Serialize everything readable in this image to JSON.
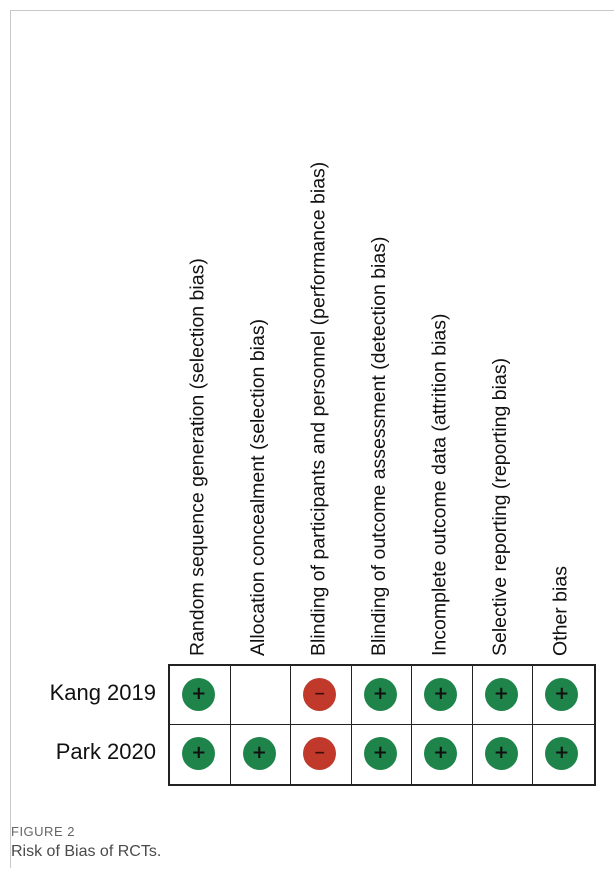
{
  "figure": {
    "label": "FIGURE 2",
    "caption": "Risk of Bias of RCTs."
  },
  "colors": {
    "low": "#1e8449",
    "high": "#c0392b"
  },
  "chart_data": {
    "type": "table",
    "columns": [
      "Random sequence generation (selection bias)",
      "Allocation concealment (selection bias)",
      "Blinding of participants and personnel (performance bias)",
      "Blinding of outcome assessment (detection bias)",
      "Incomplete outcome data (attrition bias)",
      "Selective reporting (reporting bias)",
      "Other bias"
    ],
    "rows": [
      {
        "study": "Kang 2019",
        "judgments": [
          "low",
          "",
          "high",
          "low",
          "low",
          "low",
          "low"
        ]
      },
      {
        "study": "Park 2020",
        "judgments": [
          "low",
          "low",
          "high",
          "low",
          "low",
          "low",
          "low"
        ]
      }
    ],
    "symbols": {
      "low": "+",
      "high": "−"
    }
  }
}
